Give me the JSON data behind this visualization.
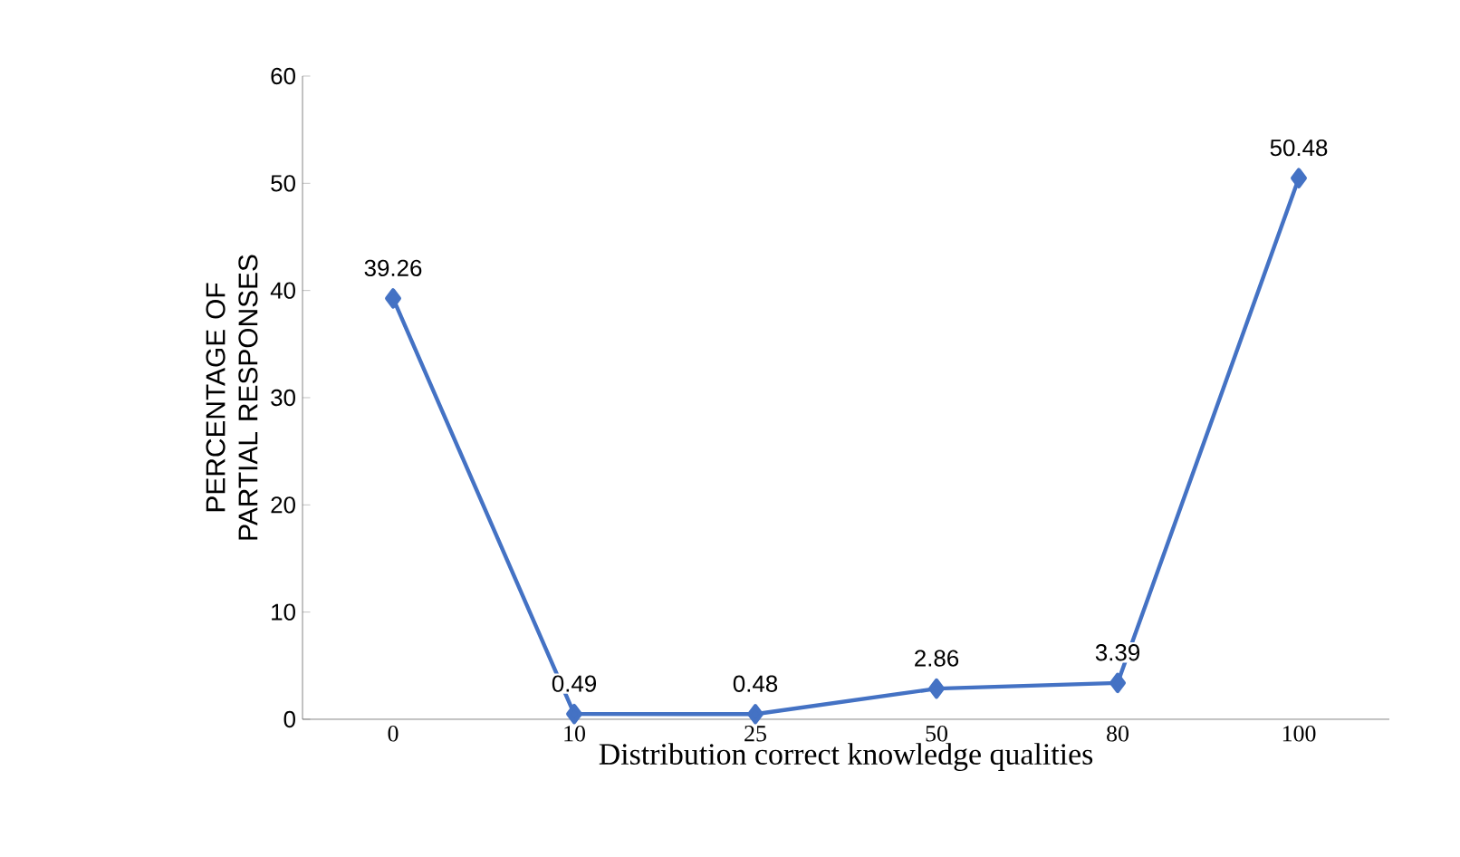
{
  "chart_data": {
    "type": "line",
    "xlabel": "Distribution correct knowledge qualities",
    "ylabel": "PERCENTAGE OF PARTIAL RESPONSES",
    "categories": [
      "0",
      "10",
      "25",
      "50",
      "80",
      "100"
    ],
    "values": [
      39.26,
      0.49,
      0.48,
      2.86,
      3.39,
      50.48
    ],
    "color": "#4472c4",
    "marker": "diamond",
    "data_labels": true,
    "ylim": [
      0,
      60
    ],
    "yticks": [
      0,
      10,
      20,
      30,
      40,
      50,
      60
    ]
  }
}
